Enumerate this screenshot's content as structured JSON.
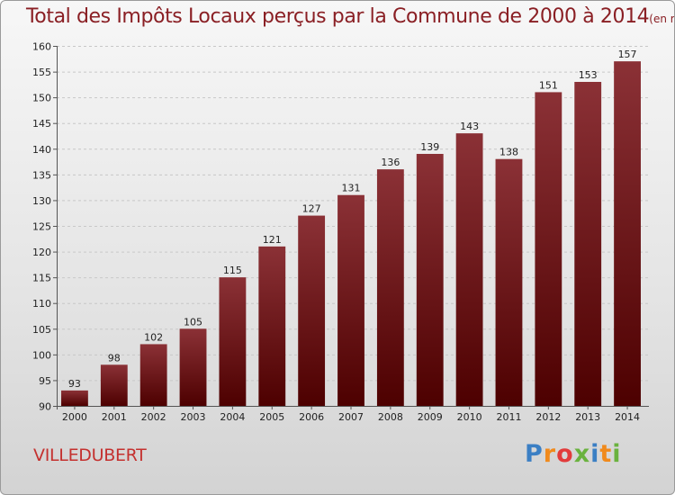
{
  "title": "Total des Impôts Locaux perçus par la Commune de 2000 à 2014",
  "title_unit": "(en milliers d'€)",
  "commune": "VILLEDUBERT",
  "brand": {
    "letters": [
      "P",
      "r",
      "o",
      "x",
      "i",
      "t",
      "i"
    ],
    "colors": [
      "#3b7fc4",
      "#f08a1c",
      "#e23b3b",
      "#6ab23e",
      "#3b7fc4",
      "#f08a1c",
      "#6ab23e"
    ]
  },
  "colors": {
    "bar_top": "#8b3136",
    "bar_bottom": "#4d0000",
    "title": "#8a1f24",
    "commune": "#c4312f"
  },
  "chart_data": {
    "type": "bar",
    "title": "Total des Impôts Locaux perçus par la Commune de 2000 à 2014",
    "subtitle": "(en milliers d'€)",
    "xlabel": "",
    "ylabel": "",
    "categories": [
      "2000",
      "2001",
      "2002",
      "2003",
      "2004",
      "2005",
      "2006",
      "2007",
      "2008",
      "2009",
      "2010",
      "2011",
      "2012",
      "2013",
      "2014"
    ],
    "values": [
      93,
      98,
      102,
      105,
      115,
      121,
      127,
      131,
      136,
      139,
      143,
      138,
      151,
      153,
      157
    ],
    "ylim": [
      90,
      160
    ],
    "yticks": [
      90,
      95,
      100,
      105,
      110,
      115,
      120,
      125,
      130,
      135,
      140,
      145,
      150,
      155,
      160
    ],
    "grid": true,
    "data_labels": true,
    "legend": "none"
  }
}
